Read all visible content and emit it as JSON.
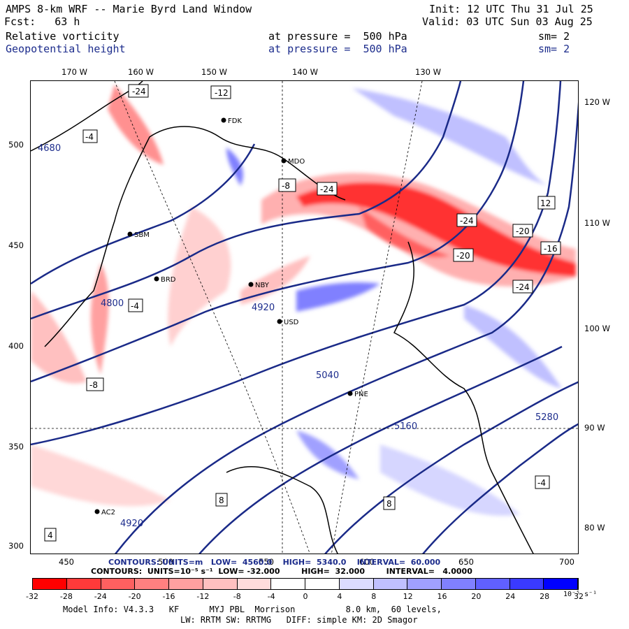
{
  "header": {
    "title": "AMPS 8-km WRF -- Marie Byrd Land Window",
    "forecast": "Fcst:   63 h",
    "init": "Init: 12 UTC Thu 31 Jul 25",
    "valid": "Valid: 03 UTC Sun 03 Aug 25"
  },
  "fields": [
    {
      "name": "Relative vorticity",
      "level": "at pressure =  500 hPa",
      "smooth": "sm= 2",
      "color": "#000000"
    },
    {
      "name": "Geopotential height",
      "level": "at pressure =  500 hPa",
      "smooth": "sm= 2",
      "color": "#1c2c8c"
    }
  ],
  "axes": {
    "top_ticks": [
      "170 W",
      "160 W",
      "150 W",
      "140 W",
      "130 W"
    ],
    "right_ticks": [
      "120 W",
      "110 W",
      "100 W",
      "90 W",
      "80 W"
    ],
    "left_ticks": [
      "500",
      "450",
      "400",
      "350",
      "300"
    ],
    "bottom_ticks": [
      "450",
      "500",
      "550",
      "600",
      "650",
      "700"
    ]
  },
  "stations": [
    "FDK",
    "MDO",
    "SBM",
    "BRD",
    "NBY",
    "USD",
    "PNE",
    "AC2"
  ],
  "height_labels": [
    "4680",
    "4800",
    "4920",
    "5040",
    "5160",
    "5280",
    "4920"
  ],
  "vorticity_labels": [
    "-24",
    "-12",
    "-4",
    "-8",
    "-16",
    "-20",
    "4",
    "8",
    "12",
    "-4",
    "-8"
  ],
  "contour_lines": {
    "blue": "CONTOURS: UNITS=m   LOW=  4560.0    HIGH=  5340.0    INTERVAL=  60.000",
    "black": "CONTOURS:  UNITS=10⁻⁵ s⁻¹  LOW= -32.000        HIGH=  32.000        INTERVAL=   4.0000"
  },
  "colorbar": {
    "labels": [
      "-32",
      "-28",
      "-24",
      "-20",
      "-16",
      "-12",
      "-8",
      "-4",
      "0",
      "4",
      "8",
      "12",
      "16",
      "20",
      "24",
      "28",
      "32"
    ],
    "units": "10⁻⁵ s⁻¹",
    "colors": [
      "#ff0000",
      "#ff3a3a",
      "#ff6060",
      "#ff8080",
      "#ffa0a0",
      "#ffc0c0",
      "#ffdcdc",
      "#ffffff",
      "#ffffff",
      "#dcdcff",
      "#c0c0ff",
      "#a0a0ff",
      "#8080ff",
      "#6060ff",
      "#3a3aff",
      "#0000ff"
    ]
  },
  "footer": {
    "line1": "Model Info: V4.3.3   KF      MYJ PBL  Morrison          8.0 km,  60 levels,",
    "line2": "LW: RRTM SW: RRTMG   DIFF: simple KM: 2D Smagor"
  }
}
